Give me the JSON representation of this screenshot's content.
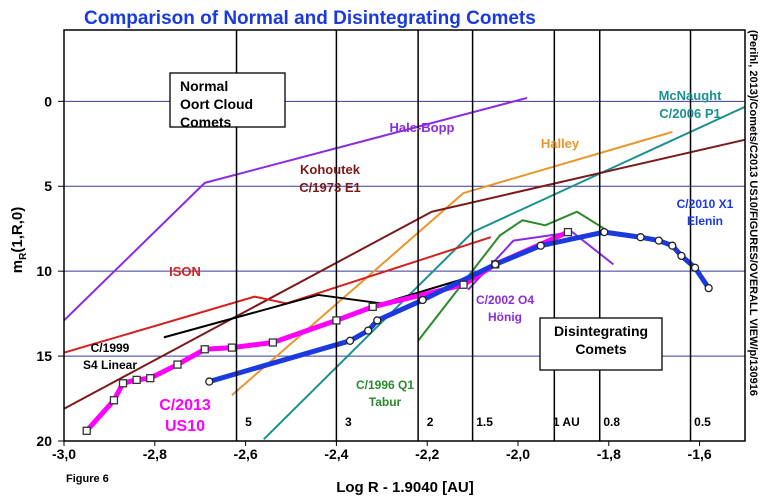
{
  "chart_data": {
    "type": "line",
    "title": "Comparison of Normal and Disintegrating Comets",
    "figure_label": "Figure 6",
    "x_label": "Log R - 1.9040 [AU]",
    "y_label": {
      "main": "m",
      "sub": "R",
      "rest": "(1,R,0)"
    },
    "credit": "(Perihl, 2013)/Comets/C2013 US10/FIGURES/OVERALL VIEW/p/130916",
    "xlim": [
      -3.0,
      -1.5
    ],
    "ylim": [
      20,
      -4.2
    ],
    "xticks": [
      {
        "value": -3.0,
        "label": "-3,0"
      },
      {
        "value": -2.8,
        "label": "-2,8"
      },
      {
        "value": -2.6,
        "label": "-2,6"
      },
      {
        "value": -2.4,
        "label": "-2,4"
      },
      {
        "value": -2.2,
        "label": "-2,2"
      },
      {
        "value": -2.0,
        "label": "-2,0"
      },
      {
        "value": -1.8,
        "label": "-1,8"
      },
      {
        "value": -1.6,
        "label": "-1,6"
      }
    ],
    "yticks": [
      0,
      5,
      10,
      15,
      20
    ],
    "grid": true,
    "grid_color": "#3a3a9a",
    "distance_markers": [
      {
        "label": "5",
        "x": -2.62
      },
      {
        "label": "3",
        "x": -2.4
      },
      {
        "label": "2",
        "x": -2.22
      },
      {
        "label": "1.5",
        "x": -2.1
      },
      {
        "label": "1 AU",
        "x": -1.92
      },
      {
        "label": "0.8",
        "x": -1.82
      },
      {
        "label": "0.5",
        "x": -1.62
      }
    ],
    "boxes": [
      {
        "lines": [
          "Normal",
          "Oort Cloud",
          "Comets"
        ]
      },
      {
        "lines": [
          "Disintegrating",
          "Comets"
        ]
      }
    ],
    "series": [
      {
        "label": [
          "Hale-Bopp"
        ],
        "color": "#8a2be2",
        "width": 2,
        "x": [
          -3.0,
          -2.69,
          -1.98
        ],
        "values": [
          12.9,
          4.8,
          -0.2
        ]
      },
      {
        "label": [
          "Halley"
        ],
        "color": "#e8962a",
        "width": 2,
        "x": [
          -2.63,
          -2.12,
          -1.66
        ],
        "values": [
          17.3,
          5.4,
          1.8
        ]
      },
      {
        "label": [
          "McNaught",
          "C/2006 P1"
        ],
        "color": "#1a9090",
        "width": 2,
        "x": [
          -2.56,
          -2.1,
          -1.49
        ],
        "values": [
          19.9,
          7.7,
          0.2
        ]
      },
      {
        "label": [
          "Kohoutek",
          "C/1973 E1"
        ],
        "color": "#7b1a1a",
        "width": 2,
        "x": [
          -3.0,
          -2.19,
          -1.49
        ],
        "values": [
          18.1,
          6.5,
          2.2
        ]
      },
      {
        "label": [
          "ISON"
        ],
        "color": "#d42020",
        "width": 2,
        "x": [
          -3.0,
          -2.58,
          -2.51,
          -2.06
        ],
        "values": [
          14.8,
          11.5,
          11.9,
          8.0
        ]
      },
      {
        "label": [
          "C/1999",
          "S4 Linear"
        ],
        "color": "#000000",
        "width": 2,
        "x": [
          -2.78,
          -2.44,
          -2.3,
          -2.1
        ],
        "values": [
          13.9,
          11.4,
          11.9,
          10.3
        ]
      },
      {
        "label": [
          "C/1996 Q1",
          "Tabur"
        ],
        "color": "#2a8a2a",
        "width": 2,
        "x": [
          -2.22,
          -2.04,
          -1.99,
          -1.94,
          -1.87,
          -1.81
        ],
        "values": [
          14.1,
          7.9,
          7.0,
          7.3,
          6.5,
          7.5
        ]
      },
      {
        "label": [
          "C/2002 O4",
          "Hönig"
        ],
        "color": "#8a2be2",
        "width": 2,
        "x": [
          -2.11,
          -2.01,
          -1.88,
          -1.79
        ],
        "values": [
          11.1,
          8.2,
          7.7,
          9.6
        ]
      },
      {
        "label": [
          "C/2013",
          "US10"
        ],
        "color": "#ff00ff",
        "width": 5,
        "marker": "square",
        "x": [
          -2.95,
          -2.89,
          -2.87,
          -2.84,
          -2.81,
          -2.75,
          -2.69,
          -2.63,
          -2.54,
          -2.4,
          -2.32,
          -2.12,
          -2.05,
          -1.89
        ],
        "values": [
          19.4,
          17.6,
          16.6,
          16.4,
          16.3,
          15.5,
          14.6,
          14.5,
          14.2,
          12.9,
          12.1,
          10.8,
          9.6,
          7.7
        ]
      },
      {
        "label": [
          "C/2010 X1",
          "Elenin"
        ],
        "color": "#1a3adf",
        "width": 5,
        "marker": "circle",
        "x": [
          -2.68,
          -2.37,
          -2.33,
          -2.31,
          -2.21,
          -2.05,
          -1.95,
          -1.81,
          -1.73,
          -1.69,
          -1.66,
          -1.64,
          -1.61,
          -1.58
        ],
        "values": [
          16.5,
          14.1,
          13.5,
          12.9,
          11.7,
          9.6,
          8.5,
          7.7,
          8.0,
          8.2,
          8.5,
          9.1,
          9.8,
          11.0
        ]
      }
    ]
  }
}
